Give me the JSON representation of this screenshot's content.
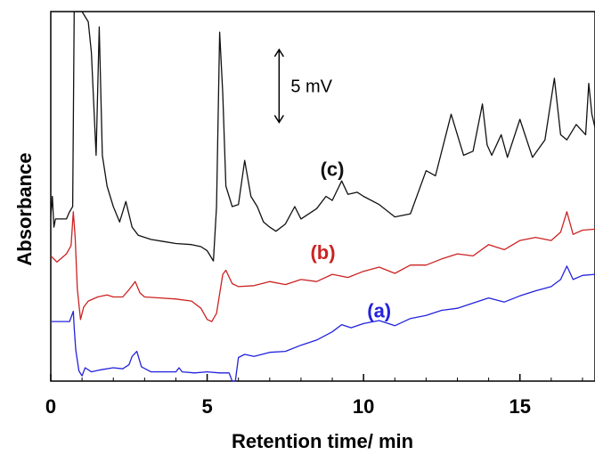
{
  "chart_data": {
    "type": "line",
    "title": "",
    "xlabel": "Retention time/ min",
    "ylabel": "Absorbance",
    "xlim": [
      0,
      17.4
    ],
    "xticks": [
      0,
      5,
      10,
      15
    ],
    "y_units": "mV",
    "ylim": [
      0,
      36
    ],
    "grid": false,
    "legend": "none",
    "scale_bar": {
      "label": "5 mV",
      "at_x": 7.3,
      "from_y": 25.2,
      "to_y": 32.3
    },
    "series": [
      {
        "name": "(a)",
        "color": "#2222dd",
        "label_at": [
          10.5,
          6.2
        ],
        "x": [
          0.0,
          0.6,
          0.72,
          0.75,
          0.8,
          0.9,
          1.0,
          1.1,
          1.3,
          1.6,
          2.0,
          2.3,
          2.5,
          2.6,
          2.75,
          2.9,
          3.2,
          3.6,
          4.0,
          4.1,
          4.2,
          4.6,
          5.0,
          5.4,
          5.7,
          5.8,
          5.9,
          6.0,
          6.2,
          6.5,
          7.0,
          7.5,
          8.0,
          8.5,
          9.0,
          9.3,
          9.6,
          10.0,
          10.5,
          11.0,
          11.5,
          12.0,
          12.5,
          13.0,
          13.5,
          14.0,
          14.5,
          15.0,
          15.5,
          16.0,
          16.3,
          16.5,
          16.7,
          17.0,
          17.4
        ],
        "y": [
          5.8,
          5.8,
          6.8,
          5.2,
          3.0,
          1.0,
          0.5,
          1.3,
          0.9,
          1.1,
          1.3,
          1.2,
          1.6,
          2.4,
          2.9,
          1.4,
          0.9,
          0.9,
          0.9,
          1.3,
          0.9,
          0.8,
          0.9,
          0.8,
          0.8,
          0.0,
          0.0,
          2.3,
          2.6,
          2.4,
          2.8,
          2.9,
          3.5,
          4.0,
          4.8,
          5.5,
          5.2,
          5.6,
          5.9,
          5.4,
          6.1,
          6.4,
          6.9,
          7.1,
          7.6,
          8.1,
          7.7,
          8.3,
          8.8,
          9.2,
          9.9,
          11.2,
          9.9,
          10.3,
          10.4
        ]
      },
      {
        "name": "(b)",
        "color": "#cc2222",
        "label_at": [
          8.7,
          11.9
        ],
        "x": [
          0.0,
          0.2,
          0.5,
          0.65,
          0.72,
          0.78,
          0.85,
          0.95,
          1.05,
          1.2,
          1.5,
          1.8,
          2.0,
          2.3,
          2.5,
          2.6,
          2.7,
          2.85,
          3.0,
          3.5,
          4.0,
          4.5,
          4.8,
          5.0,
          5.15,
          5.3,
          5.5,
          5.6,
          5.8,
          6.0,
          6.5,
          7.0,
          7.5,
          8.0,
          8.5,
          9.0,
          9.5,
          10.0,
          10.5,
          11.0,
          11.5,
          12.0,
          12.5,
          13.0,
          13.5,
          14.0,
          14.5,
          15.0,
          15.5,
          16.0,
          16.3,
          16.5,
          16.7,
          17.0,
          17.4
        ],
        "y": [
          12.2,
          11.6,
          12.4,
          13.2,
          16.5,
          14.0,
          9.0,
          6.0,
          7.2,
          7.8,
          8.2,
          8.4,
          8.2,
          8.2,
          8.9,
          9.3,
          9.7,
          8.6,
          8.2,
          8.1,
          8.0,
          7.8,
          7.1,
          6.0,
          5.8,
          6.6,
          10.4,
          10.8,
          9.5,
          9.2,
          9.3,
          9.7,
          9.4,
          9.9,
          9.7,
          10.4,
          10.1,
          10.7,
          11.1,
          10.5,
          11.3,
          11.3,
          11.9,
          12.4,
          12.2,
          13.3,
          12.8,
          13.7,
          14.0,
          13.7,
          14.5,
          16.5,
          14.3,
          14.7,
          14.8
        ]
      },
      {
        "name": "(c)",
        "color": "#111111",
        "label_at": [
          9.0,
          20.0
        ],
        "x": [
          0.0,
          0.05,
          0.1,
          0.15,
          0.2,
          0.5,
          0.6,
          0.7,
          0.75,
          0.85,
          1.0,
          1.2,
          1.3,
          1.45,
          1.55,
          1.65,
          1.8,
          2.0,
          2.2,
          2.4,
          2.6,
          2.8,
          3.2,
          3.6,
          4.0,
          4.5,
          4.8,
          5.0,
          5.2,
          5.3,
          5.4,
          5.5,
          5.6,
          5.8,
          6.0,
          6.2,
          6.4,
          6.6,
          6.8,
          7.0,
          7.2,
          7.5,
          7.8,
          8.0,
          8.5,
          8.8,
          9.0,
          9.3,
          9.5,
          9.8,
          10.0,
          10.5,
          11.0,
          11.5,
          12.0,
          12.3,
          12.8,
          13.2,
          13.5,
          13.8,
          13.95,
          14.1,
          14.4,
          14.6,
          15.0,
          15.4,
          15.8,
          16.1,
          16.3,
          16.5,
          16.8,
          17.1,
          17.2,
          17.3,
          17.4
        ],
        "y": [
          16.0,
          18.0,
          15.0,
          15.8,
          15.8,
          15.8,
          16.5,
          17.0,
          36.0,
          36.0,
          36.0,
          35.0,
          32.0,
          22.0,
          34.5,
          22.0,
          19.0,
          17.0,
          15.5,
          17.5,
          15.0,
          14.2,
          13.8,
          13.6,
          13.4,
          13.3,
          13.1,
          12.7,
          11.7,
          17.0,
          34.0,
          28.0,
          19.0,
          17.0,
          17.2,
          21.5,
          18.0,
          17.0,
          15.5,
          15.0,
          14.6,
          15.3,
          17.0,
          15.8,
          16.8,
          18.0,
          17.6,
          19.5,
          18.2,
          18.4,
          18.0,
          17.2,
          16.0,
          16.3,
          20.5,
          20.0,
          26.0,
          22.0,
          22.4,
          27.0,
          23.0,
          22.0,
          24.0,
          21.8,
          25.5,
          21.8,
          23.5,
          29.5,
          24.0,
          23.5,
          25.0,
          24.0,
          29.0,
          26.0,
          24.7
        ]
      }
    ]
  }
}
